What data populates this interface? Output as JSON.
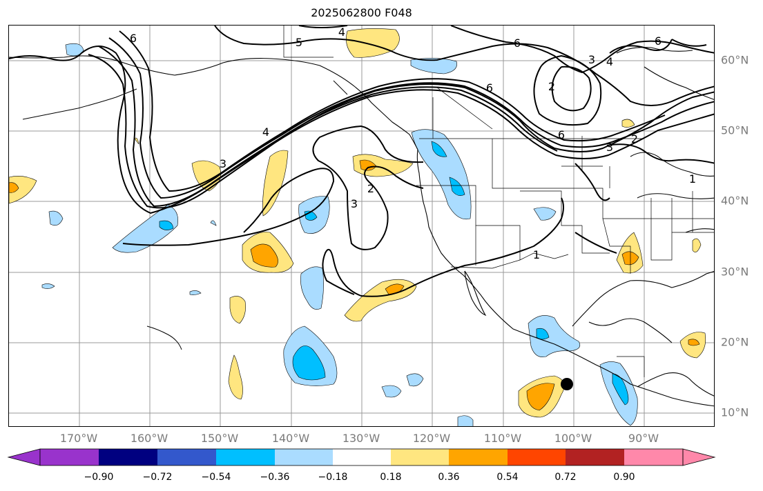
{
  "title": "2025062800 F048",
  "lon_labels": [
    "170°W",
    "160°W",
    "150°W",
    "140°W",
    "130°W",
    "120°W",
    "110°W",
    "100°W",
    "90°W"
  ],
  "lat_labels": [
    "60°N",
    "50°N",
    "40°N",
    "30°N",
    "20°N",
    "10°N"
  ],
  "contour_labels": [
    "4",
    "5",
    "6",
    "6",
    "3",
    "4",
    "6",
    "2",
    "6",
    "3",
    "2",
    "4",
    "3",
    "2",
    "3",
    "1",
    "1",
    "6"
  ],
  "colorbar": {
    "ticks": [
      "−0.90",
      "−0.72",
      "−0.54",
      "−0.36",
      "−0.18",
      "0.18",
      "0.36",
      "0.54",
      "0.72",
      "0.90"
    ],
    "colors": [
      "#9933cc",
      "#000080",
      "#3358cc",
      "#00bfff",
      "#aadcff",
      "#ffffff",
      "#ffe680",
      "#ffa500",
      "#ff4500",
      "#b22222",
      "#ff88aa"
    ]
  },
  "map": {
    "lon_range": [
      -180,
      -80
    ],
    "lat_range": [
      8,
      65
    ],
    "grid": true,
    "marker": {
      "lon": -101,
      "lat": 14
    }
  }
}
